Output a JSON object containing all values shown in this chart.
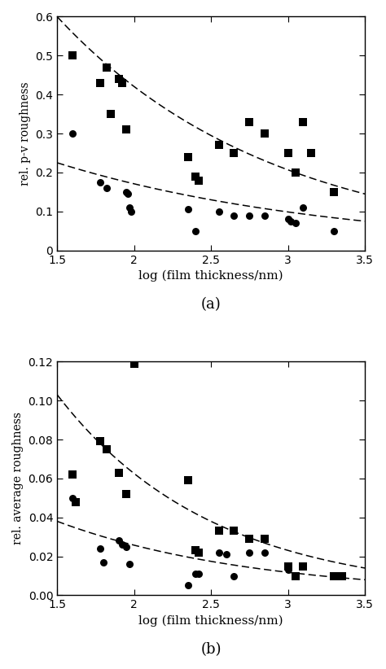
{
  "panel_a": {
    "title": "(a)",
    "ylabel": "rel. p-v roughness",
    "xlabel": "log (film thickness/nm)",
    "xlim": [
      1.5,
      3.5
    ],
    "ylim": [
      0.0,
      0.6
    ],
    "yticks": [
      0.0,
      0.1,
      0.2,
      0.3,
      0.4,
      0.5,
      0.6
    ],
    "xticks": [
      1.5,
      2.0,
      2.5,
      3.0,
      3.5
    ],
    "squares": [
      [
        1.6,
        0.5
      ],
      [
        1.78,
        0.43
      ],
      [
        1.82,
        0.47
      ],
      [
        1.9,
        0.44
      ],
      [
        1.92,
        0.43
      ],
      [
        1.85,
        0.35
      ],
      [
        1.95,
        0.31
      ],
      [
        2.35,
        0.24
      ],
      [
        2.4,
        0.19
      ],
      [
        2.42,
        0.18
      ],
      [
        2.55,
        0.27
      ],
      [
        2.65,
        0.25
      ],
      [
        2.75,
        0.33
      ],
      [
        2.85,
        0.3
      ],
      [
        3.0,
        0.25
      ],
      [
        3.05,
        0.2
      ],
      [
        3.1,
        0.33
      ],
      [
        3.15,
        0.25
      ],
      [
        3.3,
        0.15
      ]
    ],
    "circles": [
      [
        1.6,
        0.3
      ],
      [
        1.78,
        0.175
      ],
      [
        1.82,
        0.16
      ],
      [
        1.95,
        0.15
      ],
      [
        1.96,
        0.145
      ],
      [
        1.97,
        0.11
      ],
      [
        1.98,
        0.1
      ],
      [
        2.35,
        0.105
      ],
      [
        2.4,
        0.05
      ],
      [
        2.55,
        0.1
      ],
      [
        2.65,
        0.09
      ],
      [
        2.75,
        0.09
      ],
      [
        2.85,
        0.09
      ],
      [
        3.0,
        0.08
      ],
      [
        3.02,
        0.075
      ],
      [
        3.05,
        0.07
      ],
      [
        3.1,
        0.11
      ],
      [
        3.3,
        0.05
      ]
    ],
    "curve_upper_y0": 0.6,
    "curve_upper_y1": 0.145,
    "curve_lower_y0": 0.225,
    "curve_lower_y1": 0.075
  },
  "panel_b": {
    "title": "(b)",
    "ylabel": "rel. average roughness",
    "xlabel": "log (film thickness/nm)",
    "xlim": [
      1.5,
      3.5
    ],
    "ylim": [
      0.0,
      0.12
    ],
    "yticks": [
      0.0,
      0.02,
      0.04,
      0.06,
      0.08,
      0.1,
      0.12
    ],
    "xticks": [
      1.5,
      2.0,
      2.5,
      3.0,
      3.5
    ],
    "squares": [
      [
        1.6,
        0.062
      ],
      [
        1.62,
        0.048
      ],
      [
        1.78,
        0.079
      ],
      [
        1.82,
        0.075
      ],
      [
        1.9,
        0.063
      ],
      [
        1.95,
        0.052
      ],
      [
        2.0,
        0.119
      ],
      [
        2.35,
        0.059
      ],
      [
        2.4,
        0.023
      ],
      [
        2.42,
        0.022
      ],
      [
        2.55,
        0.033
      ],
      [
        2.65,
        0.033
      ],
      [
        2.75,
        0.029
      ],
      [
        2.85,
        0.029
      ],
      [
        3.0,
        0.015
      ],
      [
        3.05,
        0.01
      ],
      [
        3.1,
        0.015
      ],
      [
        3.3,
        0.01
      ],
      [
        3.35,
        0.01
      ]
    ],
    "circles": [
      [
        1.6,
        0.05
      ],
      [
        1.62,
        0.048
      ],
      [
        1.78,
        0.024
      ],
      [
        1.8,
        0.017
      ],
      [
        1.9,
        0.028
      ],
      [
        1.92,
        0.026
      ],
      [
        1.95,
        0.025
      ],
      [
        1.97,
        0.016
      ],
      [
        2.35,
        0.005
      ],
      [
        2.4,
        0.011
      ],
      [
        2.42,
        0.011
      ],
      [
        2.55,
        0.022
      ],
      [
        2.6,
        0.021
      ],
      [
        2.65,
        0.01
      ],
      [
        2.75,
        0.022
      ],
      [
        2.85,
        0.022
      ],
      [
        3.0,
        0.013
      ],
      [
        3.05,
        0.01
      ],
      [
        3.1,
        0.015
      ],
      [
        3.3,
        0.01
      ]
    ],
    "curve_upper_y0": 0.103,
    "curve_upper_y1": 0.014,
    "curve_lower_y0": 0.038,
    "curve_lower_y1": 0.008
  },
  "marker_size": 42,
  "line_color": "#000000",
  "bg_color": "#ffffff"
}
